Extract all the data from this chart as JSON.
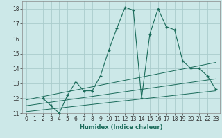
{
  "xlabel": "Humidex (Indice chaleur)",
  "xlim": [
    -0.5,
    23.5
  ],
  "ylim": [
    11,
    18.5
  ],
  "yticks": [
    11,
    12,
    13,
    14,
    15,
    16,
    17,
    18
  ],
  "xticks": [
    0,
    1,
    2,
    3,
    4,
    5,
    6,
    7,
    8,
    9,
    10,
    11,
    12,
    13,
    14,
    15,
    16,
    17,
    18,
    19,
    20,
    21,
    22,
    23
  ],
  "bg_color": "#cce8e8",
  "grid_color": "#aacccc",
  "line_color": "#1a6b5a",
  "line1_x": [
    2,
    3,
    4,
    5,
    6,
    7,
    8,
    9,
    10,
    11,
    12,
    13,
    14,
    15,
    16,
    17,
    18,
    19,
    20,
    21,
    22,
    23
  ],
  "line1_y": [
    12.0,
    11.5,
    11.0,
    12.2,
    13.1,
    12.5,
    12.5,
    13.5,
    15.2,
    16.7,
    18.1,
    17.9,
    12.0,
    16.3,
    18.0,
    16.8,
    16.6,
    14.5,
    14.0,
    14.0,
    13.5,
    12.6
  ],
  "line2_x": [
    0,
    23
  ],
  "line2_y": [
    11.9,
    14.4
  ],
  "line3_x": [
    0,
    23
  ],
  "line3_y": [
    11.5,
    13.3
  ],
  "line4_x": [
    0,
    23
  ],
  "line4_y": [
    11.1,
    12.5
  ]
}
